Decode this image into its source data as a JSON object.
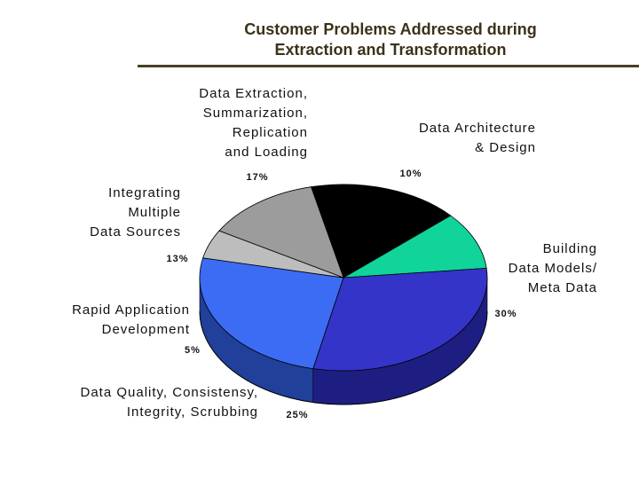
{
  "title_line1": "Customer Problems Addressed during",
  "title_line2": "Extraction and Transformation",
  "chart_data": {
    "type": "pie",
    "title": "Customer Problems Addressed during Extraction and Transformation",
    "slices": [
      {
        "label": [
          "Data Extraction,",
          "Summarization,",
          "Replication",
          "and Loading"
        ],
        "value": 17,
        "value_label": "17%",
        "color": "#000000",
        "side": "#000000"
      },
      {
        "label": [
          "Data Architecture",
          "& Design"
        ],
        "value": 10,
        "value_label": "10%",
        "color": "#10d49a",
        "side": "#0a8a64"
      },
      {
        "label": [
          "Building",
          "Data Models/",
          "Meta Data"
        ],
        "value": 30,
        "value_label": "30%",
        "color": "#3434c8",
        "side": "#1e1e82"
      },
      {
        "label": [
          "Data Quality, Consistensy,",
          "Integrity, Scrubbing"
        ],
        "value": 25,
        "value_label": "25%",
        "color": "#3c6cf4",
        "side": "#20409a"
      },
      {
        "label": [
          "Rapid Application",
          "Development"
        ],
        "value": 5,
        "value_label": "5%",
        "color": "#bdbdbd",
        "side": "#7a7a7a"
      },
      {
        "label": [
          "Integrating",
          "Multiple",
          "Data Sources"
        ],
        "value": 13,
        "value_label": "13%",
        "color": "#9c9c9c",
        "side": "#5e5e5e"
      }
    ]
  }
}
